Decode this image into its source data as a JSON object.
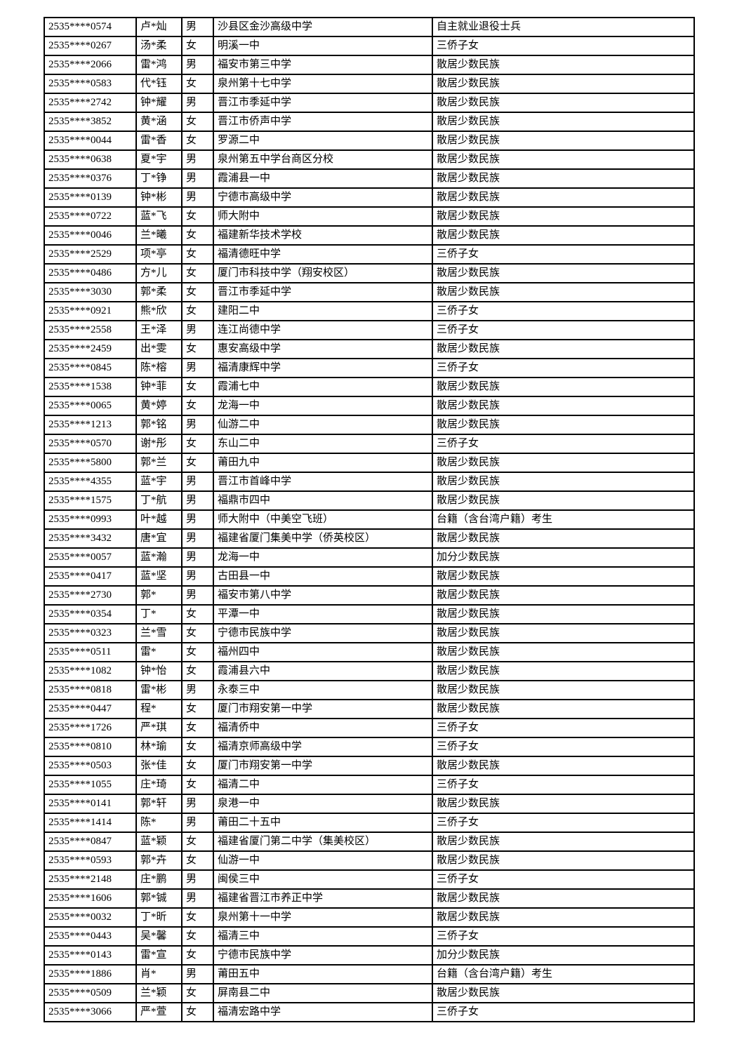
{
  "page": {
    "background_color": "#ffffff",
    "text_color": "#000000",
    "grid_line_color": "#000000"
  },
  "table": {
    "rows": [
      {
        "id": "2535****0574",
        "name": "卢*灿",
        "gender": "男",
        "school": "沙县区金沙高级中学",
        "category": "自主就业退役士兵"
      },
      {
        "id": "2535****0267",
        "name": "汤*柔",
        "gender": "女",
        "school": "明溪一中",
        "category": "三侨子女"
      },
      {
        "id": "2535****2066",
        "name": "雷*鸿",
        "gender": "男",
        "school": "福安市第三中学",
        "category": "散居少数民族"
      },
      {
        "id": "2535****0583",
        "name": "代*钰",
        "gender": "女",
        "school": "泉州第十七中学",
        "category": "散居少数民族"
      },
      {
        "id": "2535****2742",
        "name": "钟*耀",
        "gender": "男",
        "school": "晋江市季延中学",
        "category": "散居少数民族"
      },
      {
        "id": "2535****3852",
        "name": "黄*涵",
        "gender": "女",
        "school": "晋江市侨声中学",
        "category": "散居少数民族"
      },
      {
        "id": "2535****0044",
        "name": "雷*香",
        "gender": "女",
        "school": "罗源二中",
        "category": "散居少数民族"
      },
      {
        "id": "2535****0638",
        "name": "夏*宇",
        "gender": "男",
        "school": "泉州第五中学台商区分校",
        "category": "散居少数民族"
      },
      {
        "id": "2535****0376",
        "name": "丁*铮",
        "gender": "男",
        "school": "霞浦县一中",
        "category": "散居少数民族"
      },
      {
        "id": "2535****0139",
        "name": "钟*彬",
        "gender": "男",
        "school": "宁德市高级中学",
        "category": "散居少数民族"
      },
      {
        "id": "2535****0722",
        "name": "蓝*飞",
        "gender": "女",
        "school": "师大附中",
        "category": "散居少数民族"
      },
      {
        "id": "2535****0046",
        "name": "兰*曦",
        "gender": "女",
        "school": "福建新华技术学校",
        "category": "散居少数民族"
      },
      {
        "id": "2535****2529",
        "name": "项*亭",
        "gender": "女",
        "school": "福清德旺中学",
        "category": "三侨子女"
      },
      {
        "id": "2535****0486",
        "name": "方*儿",
        "gender": "女",
        "school": "厦门市科技中学（翔安校区）",
        "category": "散居少数民族"
      },
      {
        "id": "2535****3030",
        "name": "郭*柔",
        "gender": "女",
        "school": "晋江市季延中学",
        "category": "散居少数民族"
      },
      {
        "id": "2535****0921",
        "name": "熊*欣",
        "gender": "女",
        "school": "建阳二中",
        "category": "三侨子女"
      },
      {
        "id": "2535****2558",
        "name": "王*泽",
        "gender": "男",
        "school": "连江尚德中学",
        "category": "三侨子女"
      },
      {
        "id": "2535****2459",
        "name": "出*雯",
        "gender": "女",
        "school": "惠安高级中学",
        "category": "散居少数民族"
      },
      {
        "id": "2535****0845",
        "name": "陈*榕",
        "gender": "男",
        "school": "福清康辉中学",
        "category": "三侨子女"
      },
      {
        "id": "2535****1538",
        "name": "钟*菲",
        "gender": "女",
        "school": "霞浦七中",
        "category": "散居少数民族"
      },
      {
        "id": "2535****0065",
        "name": "黄*婷",
        "gender": "女",
        "school": "龙海一中",
        "category": "散居少数民族"
      },
      {
        "id": "2535****1213",
        "name": "郭*铭",
        "gender": "男",
        "school": "仙游二中",
        "category": "散居少数民族"
      },
      {
        "id": "2535****0570",
        "name": "谢*彤",
        "gender": "女",
        "school": "东山二中",
        "category": "三侨子女"
      },
      {
        "id": "2535****5800",
        "name": "郭*兰",
        "gender": "女",
        "school": "莆田九中",
        "category": "散居少数民族"
      },
      {
        "id": "2535****4355",
        "name": "蓝*宇",
        "gender": "男",
        "school": "晋江市首峰中学",
        "category": "散居少数民族"
      },
      {
        "id": "2535****1575",
        "name": "丁*航",
        "gender": "男",
        "school": "福鼎市四中",
        "category": "散居少数民族"
      },
      {
        "id": "2535****0993",
        "name": "叶*越",
        "gender": "男",
        "school": "师大附中（中美空飞班）",
        "category": "台籍（含台湾户籍）考生"
      },
      {
        "id": "2535****3432",
        "name": "唐*宜",
        "gender": "男",
        "school": "福建省厦门集美中学（侨英校区）",
        "category": "散居少数民族"
      },
      {
        "id": "2535****0057",
        "name": "蓝*瀚",
        "gender": "男",
        "school": "龙海一中",
        "category": "加分少数民族"
      },
      {
        "id": "2535****0417",
        "name": "蓝*坚",
        "gender": "男",
        "school": "古田县一中",
        "category": "散居少数民族"
      },
      {
        "id": "2535****2730",
        "name": "郭*",
        "gender": "男",
        "school": "福安市第八中学",
        "category": "散居少数民族"
      },
      {
        "id": "2535****0354",
        "name": "丁*",
        "gender": "女",
        "school": "平潭一中",
        "category": "散居少数民族"
      },
      {
        "id": "2535****0323",
        "name": "兰*雪",
        "gender": "女",
        "school": "宁德市民族中学",
        "category": "散居少数民族"
      },
      {
        "id": "2535****0511",
        "name": "雷*",
        "gender": "女",
        "school": "福州四中",
        "category": "散居少数民族"
      },
      {
        "id": "2535****1082",
        "name": "钟*怡",
        "gender": "女",
        "school": "霞浦县六中",
        "category": "散居少数民族"
      },
      {
        "id": "2535****0818",
        "name": "雷*彬",
        "gender": "男",
        "school": "永泰三中",
        "category": "散居少数民族"
      },
      {
        "id": "2535****0447",
        "name": "程*",
        "gender": "女",
        "school": "厦门市翔安第一中学",
        "category": "散居少数民族"
      },
      {
        "id": "2535****1726",
        "name": "严*琪",
        "gender": "女",
        "school": "福清侨中",
        "category": "三侨子女"
      },
      {
        "id": "2535****0810",
        "name": "林*瑜",
        "gender": "女",
        "school": "福清京师高级中学",
        "category": "三侨子女"
      },
      {
        "id": "2535****0503",
        "name": "张*佳",
        "gender": "女",
        "school": "厦门市翔安第一中学",
        "category": "散居少数民族"
      },
      {
        "id": "2535****1055",
        "name": "庄*琦",
        "gender": "女",
        "school": "福清二中",
        "category": "三侨子女"
      },
      {
        "id": "2535****0141",
        "name": "郭*轩",
        "gender": "男",
        "school": "泉港一中",
        "category": "散居少数民族"
      },
      {
        "id": "2535****1414",
        "name": "陈*",
        "gender": "男",
        "school": "莆田二十五中",
        "category": "三侨子女"
      },
      {
        "id": "2535****0847",
        "name": "蓝*颖",
        "gender": "女",
        "school": "福建省厦门第二中学（集美校区）",
        "category": "散居少数民族"
      },
      {
        "id": "2535****0593",
        "name": "郭*卉",
        "gender": "女",
        "school": "仙游一中",
        "category": "散居少数民族"
      },
      {
        "id": "2535****2148",
        "name": "庄*鹏",
        "gender": "男",
        "school": "闽侯三中",
        "category": "三侨子女"
      },
      {
        "id": "2535****1606",
        "name": "郭*铖",
        "gender": "男",
        "school": "福建省晋江市养正中学",
        "category": "散居少数民族"
      },
      {
        "id": "2535****0032",
        "name": "丁*昕",
        "gender": "女",
        "school": "泉州第十一中学",
        "category": "散居少数民族"
      },
      {
        "id": "2535****0443",
        "name": "吴*馨",
        "gender": "女",
        "school": "福清三中",
        "category": "三侨子女"
      },
      {
        "id": "2535****0143",
        "name": "雷*宣",
        "gender": "女",
        "school": "宁德市民族中学",
        "category": "加分少数民族"
      },
      {
        "id": "2535****1886",
        "name": "肖*",
        "gender": "男",
        "school": "莆田五中",
        "category": "台籍（含台湾户籍）考生"
      },
      {
        "id": "2535****0509",
        "name": "兰*颖",
        "gender": "女",
        "school": "屏南县二中",
        "category": "散居少数民族"
      },
      {
        "id": "2535****3066",
        "name": "严*萱",
        "gender": "女",
        "school": "福清宏路中学",
        "category": "三侨子女"
      }
    ]
  }
}
